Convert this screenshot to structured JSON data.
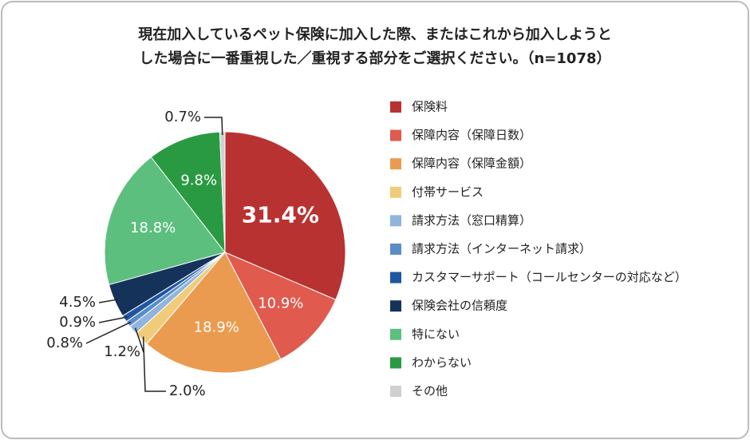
{
  "chart_data": {
    "type": "pie",
    "title": [
      "現在加入しているペット保険に加入した際、またはこれから加入しようと",
      "した場合に一番重視した／重視する部分をご選択ください。（n=1078）"
    ],
    "categories": [
      "保険料",
      "保障内容（保障日数）",
      "保障内容（保障金額）",
      "付帯サービス",
      "請求方法（窓口精算）",
      "請求方法（インターネット請求）",
      "カスタマーサポート（コールセンターの対応など）",
      "保険会社の信頼度",
      "特にない",
      "わからない",
      "その他"
    ],
    "values": [
      31.4,
      10.9,
      18.9,
      2.0,
      1.2,
      0.8,
      0.9,
      4.5,
      18.8,
      9.8,
      0.7
    ],
    "value_labels": [
      "31.4%",
      "10.9%",
      "18.9%",
      "2.0%",
      "1.2%",
      "0.8%",
      "0.9%",
      "4.5%",
      "18.8%",
      "9.8%",
      "0.7%"
    ],
    "colors": [
      "#b83232",
      "#e05a4e",
      "#eb9b4f",
      "#f0cc7a",
      "#8fb4de",
      "#5a8cc8",
      "#1f56a0",
      "#15325a",
      "#5cbf7e",
      "#2a9a42",
      "#d0d0d0"
    ],
    "legend": "right"
  }
}
